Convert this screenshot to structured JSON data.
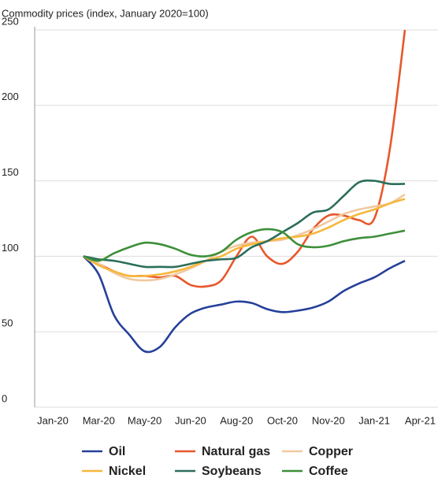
{
  "chart_data": {
    "type": "line",
    "title": "Commodity prices (index, January 2020=100)",
    "categories": [
      "Jan-20",
      null,
      null,
      "Mar-20",
      null,
      null,
      "May-20",
      null,
      null,
      "Jun-20",
      null,
      null,
      "Aug-20",
      null,
      null,
      "Oct-20",
      null,
      null,
      "Nov-20",
      null,
      null,
      "Jan-21",
      null,
      null,
      "Apr-21"
    ],
    "ylim": [
      0,
      250
    ],
    "yticks": [
      0,
      50,
      100,
      150,
      200,
      250
    ],
    "grid": true,
    "legend": "bottom",
    "series": [
      {
        "name": "Oil",
        "color": "#26409a",
        "values": [
          null,
          null,
          100,
          88,
          61,
          48,
          37,
          40,
          53,
          62,
          66,
          68,
          70,
          69,
          65,
          63,
          64,
          66,
          70,
          77,
          82,
          86,
          92,
          97,
          null
        ]
      },
      {
        "name": "Natural gas",
        "color": "#e8572b",
        "values": [
          null,
          null,
          100,
          95,
          90,
          87,
          87,
          86,
          87,
          81,
          80,
          84,
          100,
          113,
          100,
          95,
          103,
          118,
          127,
          127,
          124,
          125,
          170,
          250,
          null
        ]
      },
      {
        "name": "Copper",
        "color": "#f0c8a0",
        "values": [
          null,
          null,
          100,
          95,
          89,
          85,
          84,
          85,
          88,
          92,
          97,
          103,
          107,
          109,
          110,
          111,
          114,
          118,
          123,
          128,
          131,
          133,
          135,
          141,
          null
        ]
      },
      {
        "name": "Nickel",
        "color": "#f6b73c",
        "values": [
          null,
          null,
          100,
          94,
          90,
          87,
          87,
          88,
          90,
          93,
          97,
          100,
          105,
          108,
          110,
          112,
          113,
          115,
          119,
          124,
          128,
          131,
          135,
          138,
          null
        ]
      },
      {
        "name": "Soybeans",
        "color": "#2b6e5b",
        "values": [
          null,
          null,
          100,
          98,
          97,
          95,
          93,
          93,
          93,
          95,
          97,
          98,
          99,
          106,
          110,
          116,
          122,
          129,
          131,
          140,
          149,
          150,
          148,
          148,
          null
        ]
      },
      {
        "name": "Coffee",
        "color": "#3d8f3a",
        "values": [
          null,
          null,
          100,
          97,
          102,
          106,
          109,
          108,
          105,
          101,
          100,
          103,
          111,
          116,
          118,
          116,
          108,
          106,
          107,
          110,
          112,
          113,
          115,
          117,
          null
        ]
      }
    ]
  }
}
